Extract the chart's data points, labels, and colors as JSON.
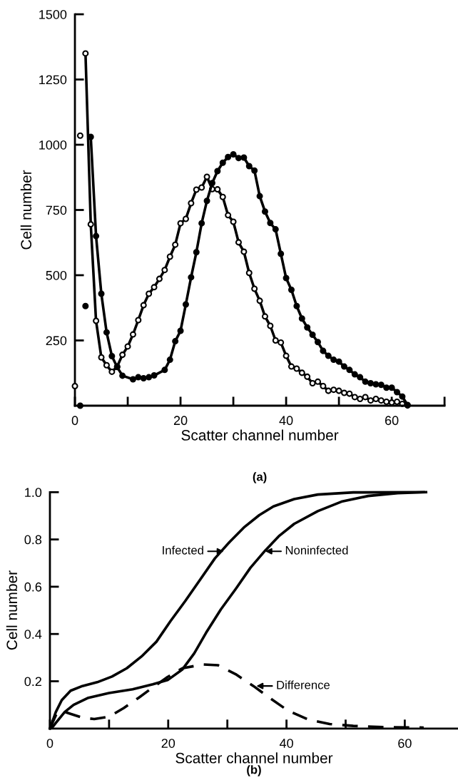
{
  "chart_data": [
    {
      "type": "line",
      "xlabel": "Scatter channel number",
      "ylabel": "Cell number",
      "annotations": [
        "(a)"
      ],
      "xlim": [
        0,
        70
      ],
      "ylim": [
        0,
        1500
      ],
      "xticks": [
        0,
        {
          "value": 10,
          "label": null
        },
        20,
        {
          "value": 30,
          "label": null
        },
        40,
        {
          "value": 50,
          "label": null
        },
        60,
        {
          "value": 70,
          "label": null
        }
      ],
      "yticks": [
        250,
        500,
        750,
        1000,
        1250,
        1500
      ],
      "grid": false,
      "legend": false,
      "marker": "circle",
      "line_style": "solid",
      "series": [
        {
          "color": "#000000",
          "x": [
            2,
            3,
            4,
            5,
            6,
            7,
            8,
            9,
            10,
            11,
            12,
            13,
            14,
            15,
            16,
            17,
            18,
            19,
            20,
            21,
            22,
            23,
            24,
            25,
            26,
            27,
            28,
            29,
            30,
            31,
            32,
            33,
            34,
            35,
            36,
            37,
            38,
            39,
            40,
            41,
            42,
            43,
            44,
            45,
            46,
            47,
            48,
            49,
            50,
            51,
            52,
            53,
            54,
            55,
            56,
            57,
            58,
            59,
            60,
            61,
            62,
            63
          ],
          "values": [
            1350,
            695,
            325,
            185,
            155,
            130,
            150,
            195,
            227,
            273,
            328,
            385,
            429,
            454,
            486,
            520,
            571,
            617,
            699,
            716,
            776,
            828,
            836,
            877,
            830,
            829,
            800,
            730,
            705,
            626,
            590,
            509,
            448,
            402,
            342,
            306,
            250,
            242,
            191,
            150,
            142,
            126,
            111,
            86,
            92,
            75,
            57,
            61,
            57,
            49,
            46,
            33,
            26,
            33,
            20,
            26,
            20,
            15,
            12,
            15,
            7,
            1
          ]
        },
        {
          "type": "scatter",
          "color": "#000000",
          "x": [
            0,
            1
          ],
          "values": [
            75,
            1035
          ]
        },
        {
          "color": "#000000",
          "x": [
            3,
            4,
            5,
            6,
            7,
            8,
            9,
            11,
            12,
            13,
            14,
            15,
            17,
            18,
            19,
            20,
            21,
            22,
            23,
            24,
            25,
            26,
            27,
            28,
            29,
            30,
            31,
            32,
            33,
            34,
            35,
            36,
            37,
            38,
            39,
            40,
            41,
            42,
            43,
            44,
            45,
            46,
            47,
            48,
            49,
            50,
            51,
            52,
            53,
            54,
            55,
            56,
            57,
            58,
            59,
            60,
            61,
            62,
            63
          ],
          "values": [
            1030,
            650,
            429,
            281,
            190,
            148,
            115,
            101,
            109,
            105,
            109,
            116,
            137,
            176,
            247,
            287,
            388,
            492,
            588,
            699,
            785,
            853,
            899,
            931,
            953,
            963,
            949,
            951,
            918,
            901,
            803,
            744,
            700,
            676,
            582,
            489,
            444,
            382,
            334,
            300,
            272,
            244,
            210,
            191,
            176,
            169,
            150,
            137,
            120,
            109,
            92,
            86,
            82,
            80,
            69,
            69,
            52,
            35,
            3
          ]
        },
        {
          "type": "scatter",
          "color": "#000000",
          "x": [
            1,
            2
          ],
          "values": [
            0,
            382
          ]
        }
      ]
    },
    {
      "type": "line",
      "xlabel": "Scatter channel number",
      "ylabel": "Cell number",
      "annotations": [
        {
          "text": "Infected",
          "x": 29.4,
          "y": 0.75
        },
        {
          "text": "Noninfected",
          "x": 36.4,
          "y": 0.75
        },
        {
          "text": "Difference",
          "x": 34.9,
          "y": 0.18
        },
        "(b)"
      ],
      "xlim": [
        0,
        69
      ],
      "ylim": [
        0,
        1.0
      ],
      "xticks": [
        0,
        {
          "value": 10,
          "label": null
        },
        20,
        {
          "value": 30,
          "label": null
        },
        40,
        {
          "value": 50,
          "label": null
        },
        60
      ],
      "yticks": [
        0.2,
        0.4,
        0.6,
        0.8,
        {
          "value": 1.0,
          "label": "1.0"
        }
      ],
      "grid": false,
      "legend": false,
      "marker": "none",
      "series": [
        {
          "color": "#000000",
          "line_style": "solid",
          "x": [
            0,
            1,
            2,
            3.5,
            5.5,
            8,
            10.5,
            13,
            15.5,
            18,
            20.4,
            22.9,
            25.4,
            27.9,
            30.4,
            32.9,
            35.4,
            37.8,
            41.3,
            45.3,
            51.3,
            63.2
          ],
          "values": [
            0,
            0.07,
            0.12,
            0.16,
            0.18,
            0.196,
            0.22,
            0.255,
            0.305,
            0.367,
            0.455,
            0.54,
            0.63,
            0.72,
            0.79,
            0.853,
            0.903,
            0.94,
            0.971,
            0.99,
            0.999,
            1.0
          ]
        },
        {
          "color": "#000000",
          "line_style": "solid",
          "x": [
            0.4,
            1.2,
            2.5,
            4,
            6.5,
            10,
            14,
            17.4,
            19.9,
            22.4,
            24.4,
            26.4,
            28.9,
            31.4,
            33.9,
            36.4,
            38.8,
            41.3,
            45.3,
            49.3,
            53.8,
            58.8,
            63.6
          ],
          "values": [
            0.005,
            0.03,
            0.07,
            0.1,
            0.13,
            0.15,
            0.166,
            0.187,
            0.205,
            0.25,
            0.318,
            0.405,
            0.504,
            0.59,
            0.68,
            0.753,
            0.816,
            0.866,
            0.92,
            0.96,
            0.984,
            0.996,
            1.0
          ]
        },
        {
          "color": "#000000",
          "line_style": "dashed",
          "x": [
            0,
            1,
            2,
            3.5,
            5.5,
            7.5,
            10,
            12.5,
            15,
            17.4,
            19.9,
            22.4,
            25.9,
            28.4,
            31.4,
            34.4,
            37.4,
            40.3,
            43.8,
            47.3,
            51.3,
            56.3,
            63.2
          ],
          "values": [
            0,
            0.056,
            0.075,
            0.062,
            0.046,
            0.04,
            0.05,
            0.087,
            0.13,
            0.174,
            0.218,
            0.255,
            0.271,
            0.268,
            0.23,
            0.18,
            0.125,
            0.075,
            0.037,
            0.019,
            0.011,
            0.006,
            0.004
          ]
        }
      ]
    }
  ]
}
